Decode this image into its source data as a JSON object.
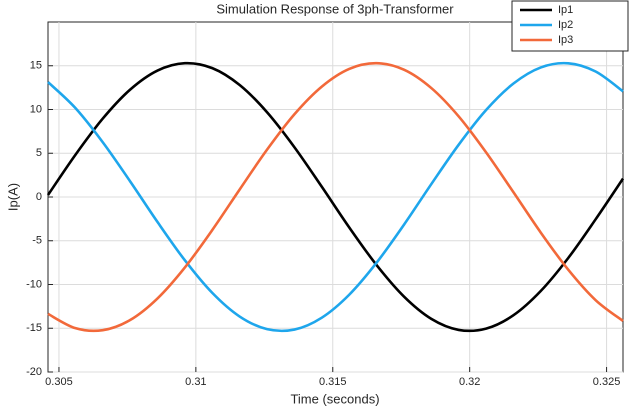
{
  "chart_data": {
    "type": "line",
    "title": "Simulation Response of 3ph-Transformer",
    "x_label": "Time (seconds)",
    "y_label": "Ip(A)",
    "x": [
      0.3046,
      0.3056,
      0.3066,
      0.3076,
      0.3086,
      0.3096,
      0.3106,
      0.3116,
      0.3126,
      0.3136,
      0.3146,
      0.3156,
      0.3166,
      0.3176,
      0.3186,
      0.3196,
      0.3206,
      0.3216,
      0.3226,
      0.3236,
      0.3246,
      0.3256
    ],
    "series": [
      {
        "name": "Ip1",
        "color": "#000000",
        "values": [
          0.23,
          4.82,
          8.96,
          12.27,
          14.45,
          15.29,
          14.73,
          12.8,
          9.69,
          5.69,
          1.17,
          -3.47,
          -7.78,
          -11.38,
          -13.93,
          -15.19,
          -15.04,
          -13.51,
          -10.73,
          -6.97,
          -2.55,
          2.1
        ]
      },
      {
        "name": "Ip2",
        "color": "#1ea6ec",
        "values": [
          13.13,
          10.17,
          6.26,
          1.79,
          -2.86,
          -7.24,
          -10.96,
          -13.66,
          -15.1,
          -15.15,
          -13.79,
          -11.17,
          -7.51,
          -3.17,
          1.48,
          5.98,
          9.94,
          12.97,
          14.81,
          15.28,
          14.34,
          12.07
        ]
      },
      {
        "name": "Ip3",
        "color": "#f2693a",
        "values": [
          -13.36,
          -14.99,
          -15.22,
          -14.06,
          -11.59,
          -8.05,
          -3.77,
          0.86,
          5.41,
          9.46,
          12.62,
          14.64,
          15.29,
          14.55,
          12.45,
          9.21,
          5.1,
          0.54,
          -4.08,
          -8.31,
          -11.79,
          -14.17
        ]
      }
    ],
    "xlim": [
      0.3046,
      0.3256
    ],
    "xticks": [
      0.305,
      0.31,
      0.315,
      0.32,
      0.325
    ],
    "ylim": [
      -20,
      20
    ],
    "yticks": [
      -20,
      -15,
      -10,
      -5,
      0,
      5,
      10,
      15
    ],
    "grid": true,
    "legend": "top-right"
  }
}
